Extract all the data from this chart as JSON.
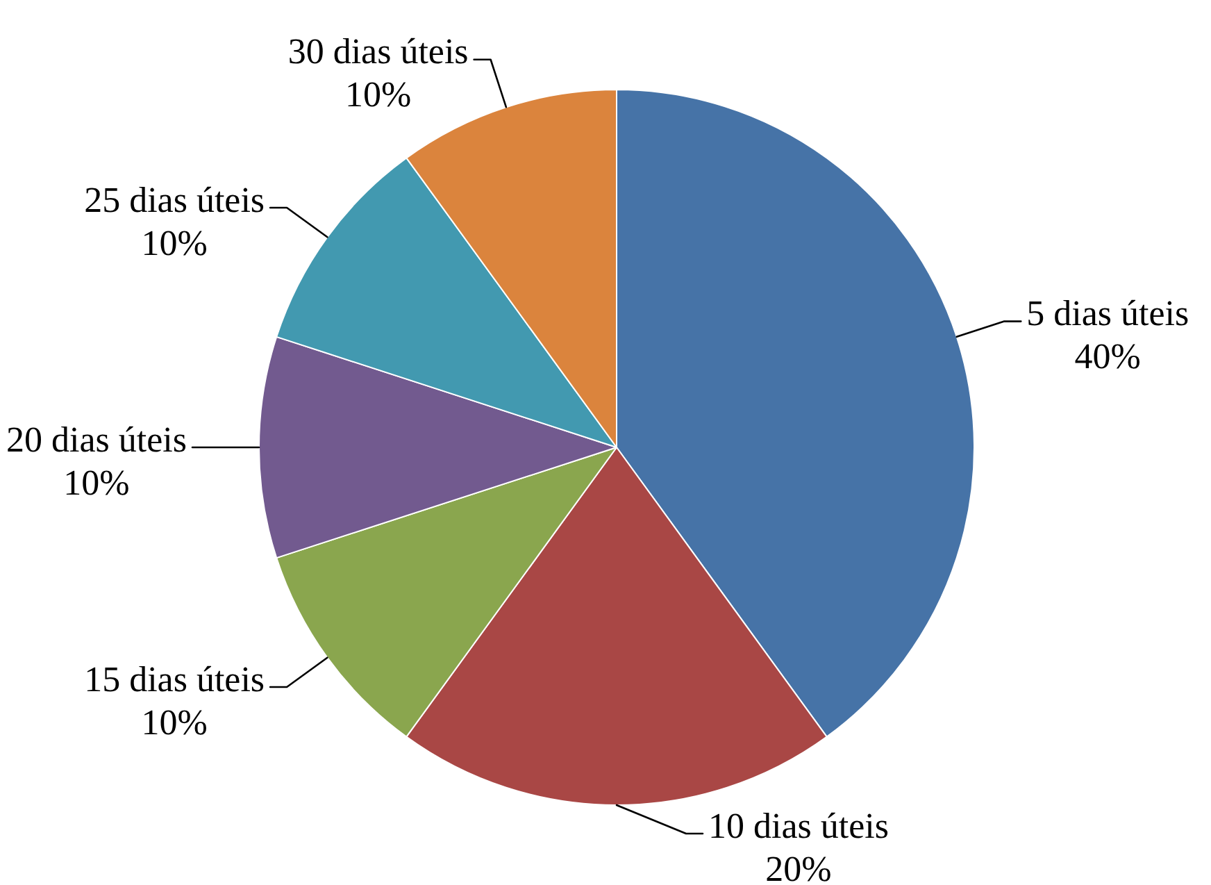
{
  "chart_data": {
    "type": "pie",
    "categories": [
      "5 dias úteis",
      "10 dias úteis",
      "15 dias úteis",
      "20 dias úteis",
      "25 dias úteis",
      "30 dias úteis"
    ],
    "values": [
      40,
      20,
      10,
      10,
      10,
      10
    ],
    "colors": [
      "#4673a7",
      "#a94745",
      "#8aa64e",
      "#725a8f",
      "#4299b0",
      "#db843d"
    ],
    "value_labels": [
      "40%",
      "20%",
      "10%",
      "10%",
      "10%",
      "10%"
    ]
  }
}
